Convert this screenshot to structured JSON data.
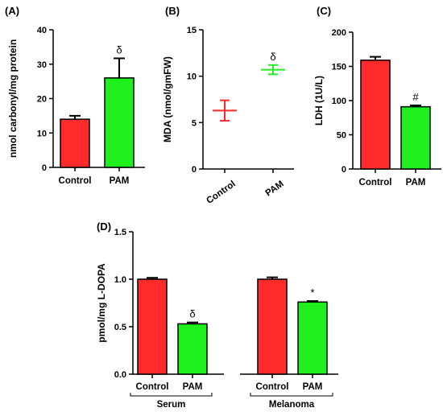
{
  "colors": {
    "control": "#ff2a2a",
    "pam": "#1ef01e",
    "stroke": "#000000"
  },
  "chart_data": [
    {
      "panel": "(A)",
      "type": "bar",
      "ylabel": "nmol carbonyl/mg protein",
      "ylim": [
        0,
        40
      ],
      "yticks": [
        0,
        10,
        20,
        30,
        40
      ],
      "categories": [
        "Control",
        "PAM"
      ],
      "values": [
        14.0,
        26.0
      ],
      "errors": [
        1.0,
        5.7
      ],
      "annotations": [
        "",
        "δ"
      ]
    },
    {
      "panel": "(B)",
      "type": "scatter",
      "ylabel": "MDA (nmol/gmFW)",
      "ylim": [
        0,
        15
      ],
      "yticks": [
        0,
        5,
        10,
        15
      ],
      "categories": [
        "Control",
        "PAM"
      ],
      "values": [
        6.3,
        10.7
      ],
      "errors": [
        1.1,
        0.5
      ],
      "annotations": [
        "",
        "δ"
      ]
    },
    {
      "panel": "(C)",
      "type": "bar",
      "ylabel": "LDH (1U/L)",
      "ylim": [
        0,
        200
      ],
      "yticks": [
        0,
        50,
        100,
        150,
        200
      ],
      "categories": [
        "Control",
        "PAM"
      ],
      "values": [
        159,
        91
      ],
      "errors": [
        5,
        2
      ],
      "annotations": [
        "",
        "#"
      ]
    },
    {
      "panel": "(D)",
      "type": "bar",
      "ylabel": "pmol/mg L-DOPA",
      "ylim": [
        0,
        1.5
      ],
      "yticks": [
        "0.0",
        "0.5",
        "1.0",
        "1.5"
      ],
      "groups": [
        "Serum",
        "Melanoma"
      ],
      "categories": [
        "Control",
        "PAM",
        "Control",
        "PAM"
      ],
      "values": [
        1.0,
        0.53,
        1.0,
        0.76
      ],
      "errors": [
        0.015,
        0.015,
        0.02,
        0.01
      ],
      "annotations": [
        "",
        "δ",
        "",
        "*"
      ]
    }
  ]
}
